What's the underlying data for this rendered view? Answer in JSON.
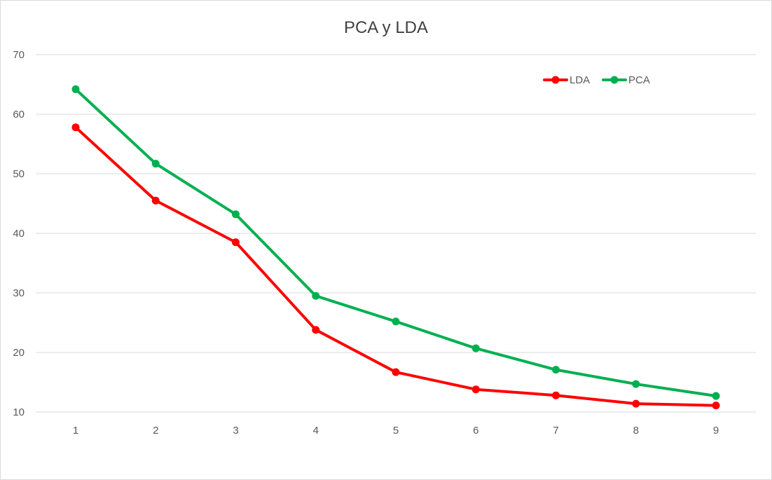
{
  "chart_data": {
    "type": "line",
    "title": "PCA y LDA",
    "xlabel": "",
    "ylabel": "",
    "categories": [
      "1",
      "2",
      "3",
      "4",
      "5",
      "6",
      "7",
      "8",
      "9"
    ],
    "y_ticks": [
      "10",
      "20",
      "30",
      "40",
      "50",
      "60",
      "70"
    ],
    "ylim": [
      10,
      70
    ],
    "grid": true,
    "legend_position": "top-right",
    "series": [
      {
        "name": "LDA",
        "color": "#ff0000",
        "values": [
          57.8,
          45.5,
          38.5,
          23.8,
          16.7,
          13.8,
          12.8,
          11.4,
          11.1
        ]
      },
      {
        "name": "PCA",
        "color": "#00b050",
        "values": [
          64.2,
          51.7,
          43.2,
          29.5,
          25.2,
          20.7,
          17.1,
          14.7,
          12.7
        ]
      }
    ]
  }
}
